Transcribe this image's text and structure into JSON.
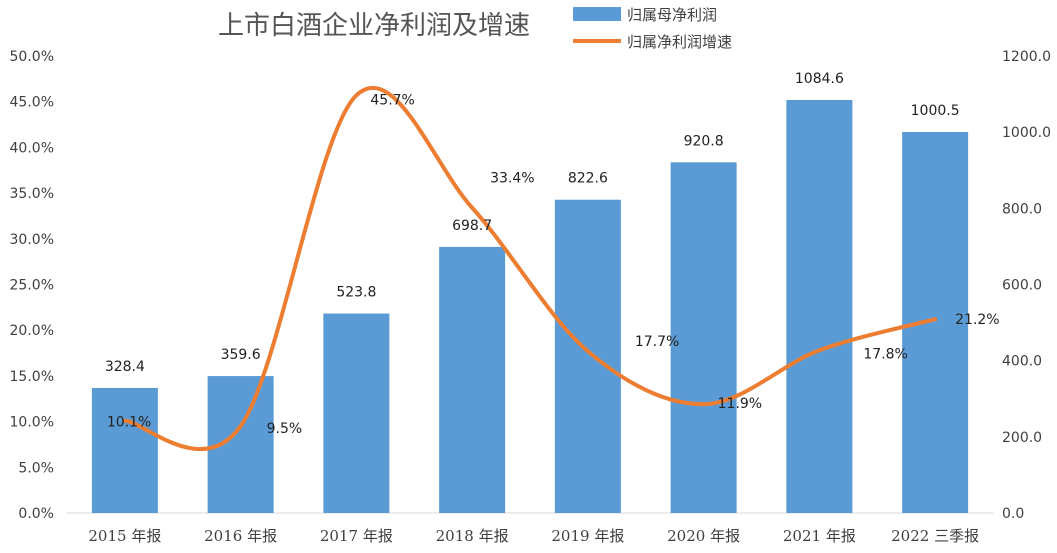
{
  "chart_data": {
    "type": "bar",
    "title": "上市白酒企业净利润及增速",
    "categories": [
      "2015 年报",
      "2016 年报",
      "2017 年报",
      "2018 年报",
      "2019 年报",
      "2020 年报",
      "2021 年报",
      "2022 三季报"
    ],
    "series": [
      {
        "name": "归属母净利润",
        "type": "bar",
        "axis": "right",
        "color": "#5B9BD5",
        "values": [
          328.4,
          359.6,
          523.8,
          698.7,
          822.6,
          920.8,
          1084.6,
          1000.5
        ],
        "labels": [
          "328.4",
          "359.6",
          "523.8",
          "698.7",
          "822.6",
          "920.8",
          "1084.6",
          "1000.5"
        ]
      },
      {
        "name": "归属净利润增速",
        "type": "line",
        "axis": "left",
        "color": "#ED7D31",
        "values": [
          10.1,
          9.5,
          45.7,
          33.4,
          17.7,
          11.9,
          17.8,
          21.2
        ],
        "labels": [
          "10.1%",
          "9.5%",
          "45.7%",
          "33.4%",
          "17.7%",
          "11.9%",
          "17.8%",
          "21.2%"
        ]
      }
    ],
    "left_axis": {
      "ylim": [
        0,
        50
      ],
      "ticks": [
        "0.0%",
        "5.0%",
        "10.0%",
        "15.0%",
        "20.0%",
        "25.0%",
        "30.0%",
        "35.0%",
        "40.0%",
        "45.0%",
        "50.0%"
      ]
    },
    "right_axis": {
      "ylim": [
        0,
        1200
      ],
      "ticks": [
        "0.0",
        "200.0",
        "400.0",
        "600.0",
        "800.0",
        "1000.0",
        "1200.0"
      ]
    },
    "legend_position": "top-center",
    "grid": false
  }
}
